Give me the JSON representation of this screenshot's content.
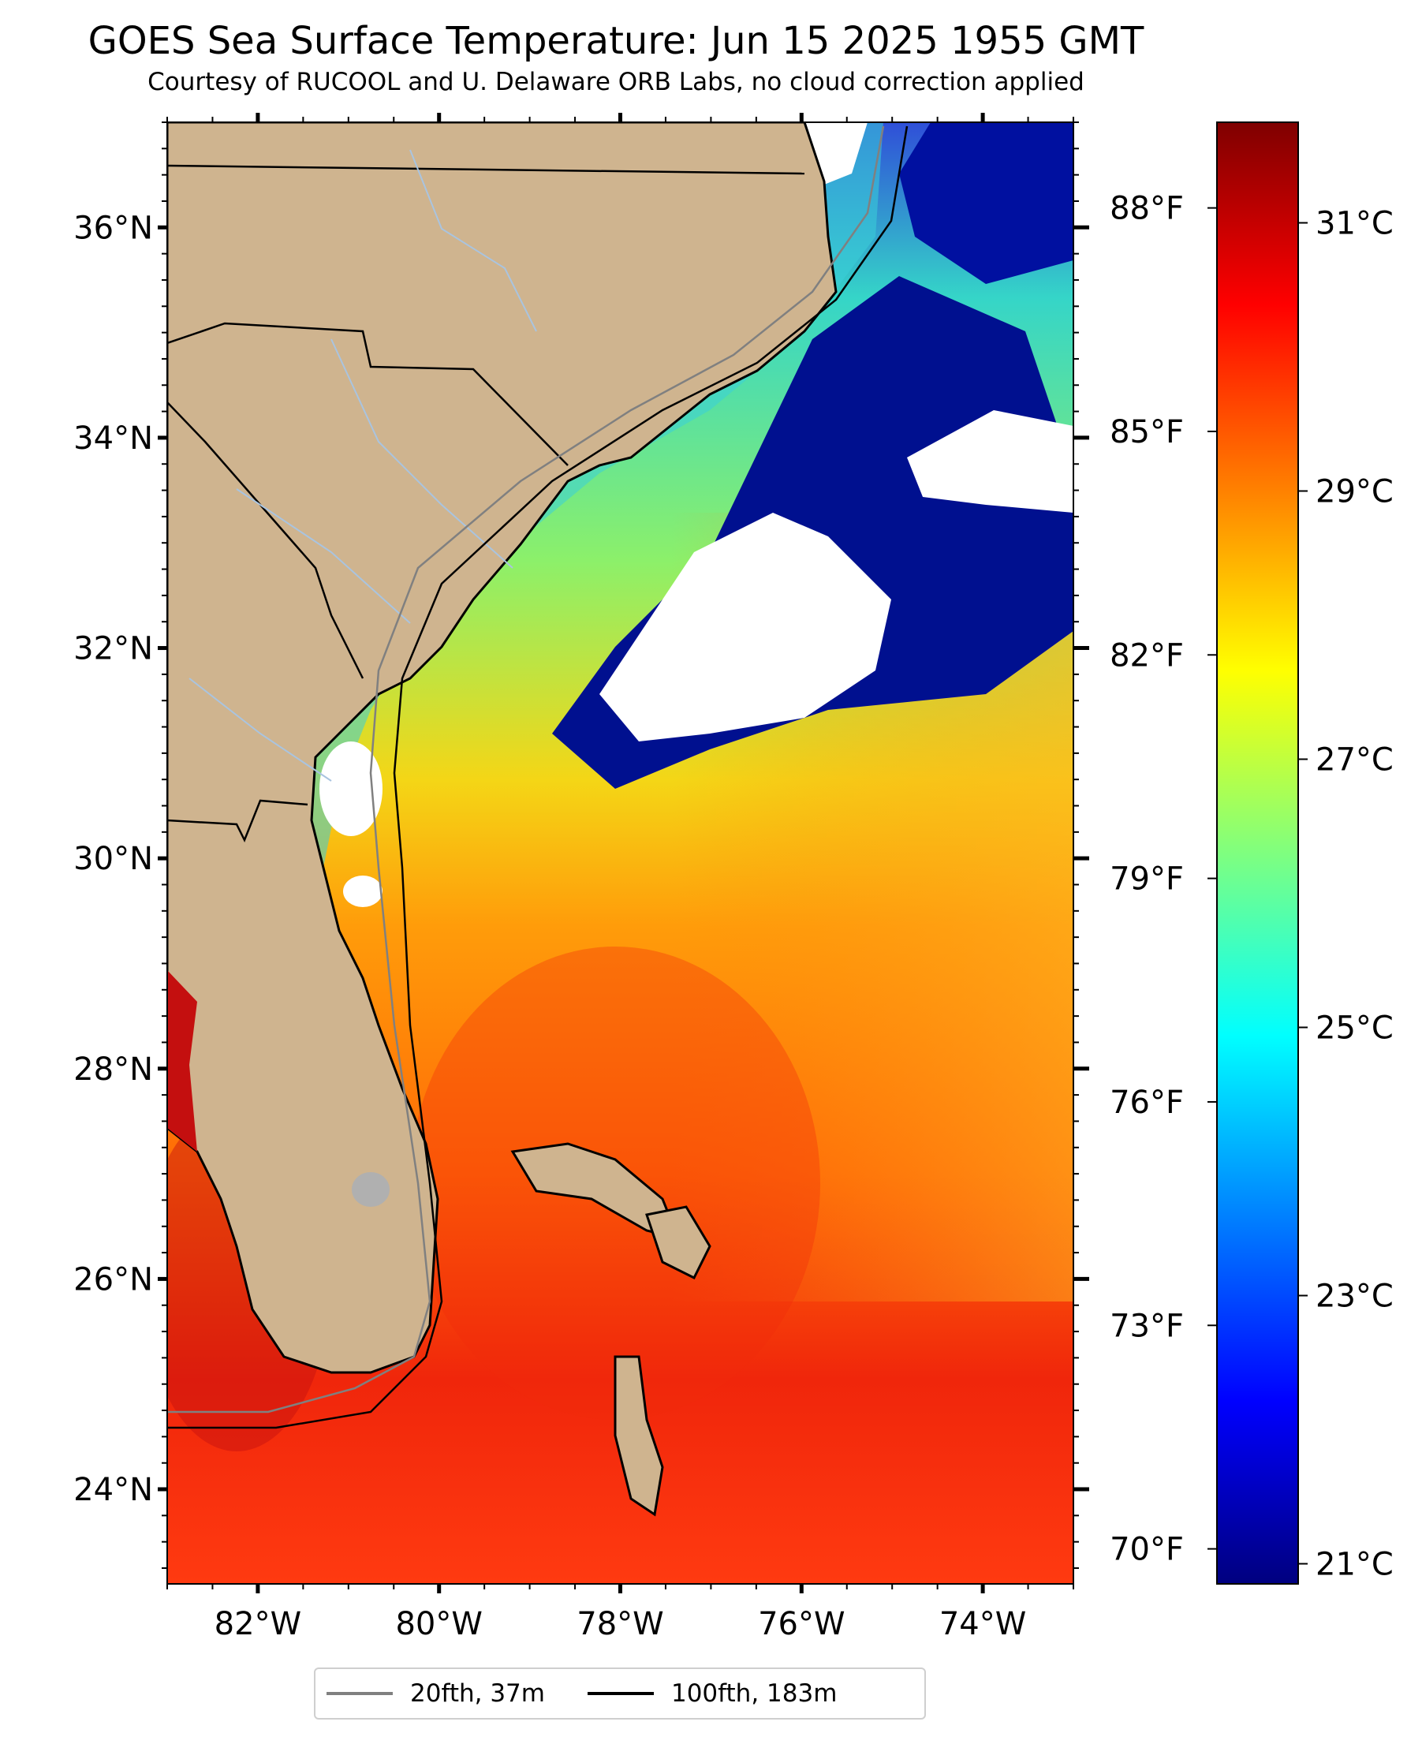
{
  "title": "GOES Sea Surface Temperature: Jun 15 2025 1955 GMT",
  "subtitle": "Courtesy of RUCOOL and U. Delaware ORB Labs, no cloud correction applied",
  "map": {
    "extent": {
      "lon_min": -83.0,
      "lon_max": -73.0,
      "lat_min": 23.1,
      "lat_max": 37.0
    },
    "lon_ticks": [
      {
        "value": -82,
        "label": "82°W"
      },
      {
        "value": -80,
        "label": "80°W"
      },
      {
        "value": -78,
        "label": "78°W"
      },
      {
        "value": -76,
        "label": "76°W"
      },
      {
        "value": -74,
        "label": "74°W"
      }
    ],
    "lat_ticks": [
      {
        "value": 24,
        "label": "24°N"
      },
      {
        "value": 26,
        "label": "26°N"
      },
      {
        "value": 28,
        "label": "28°N"
      },
      {
        "value": 30,
        "label": "30°N"
      },
      {
        "value": 32,
        "label": "32°N"
      },
      {
        "value": 34,
        "label": "34°N"
      },
      {
        "value": 36,
        "label": "36°N"
      }
    ],
    "colors": {
      "land": "#cfb48f",
      "cloud": "#ffffff",
      "lake": "#b0b0b0",
      "river": "#a9c4e0",
      "border": "#000000"
    },
    "regions": {
      "land": "Southeastern United States (NC, SC, GA, FL) and Bahamas",
      "clouds": "white cloud masks offshore",
      "warm_water": "Gulf Stream and Bahamas region around 29–31°C",
      "cool_water": "shelf waters and cloud edges around 21–26°C"
    }
  },
  "colorbar": {
    "colormap": "jet",
    "colors": [
      "#00007f",
      "#0000ff",
      "#007fff",
      "#00ffff",
      "#7fff7f",
      "#ffff00",
      "#ff7f00",
      "#ff0000",
      "#7f0000"
    ],
    "celsius": {
      "min": 20.85,
      "max": 31.75,
      "ticks": [
        {
          "value": 21,
          "label": "21°C"
        },
        {
          "value": 23,
          "label": "23°C"
        },
        {
          "value": 25,
          "label": "25°C"
        },
        {
          "value": 27,
          "label": "27°C"
        },
        {
          "value": 29,
          "label": "29°C"
        },
        {
          "value": 31,
          "label": "31°C"
        }
      ]
    },
    "fahrenheit": {
      "ticks": [
        {
          "value": 70,
          "label": "70°F"
        },
        {
          "value": 73,
          "label": "73°F"
        },
        {
          "value": 76,
          "label": "76°F"
        },
        {
          "value": 79,
          "label": "79°F"
        },
        {
          "value": 82,
          "label": "82°F"
        },
        {
          "value": 85,
          "label": "85°F"
        },
        {
          "value": 88,
          "label": "88°F"
        }
      ]
    }
  },
  "legend": {
    "items": [
      {
        "label": "20fth, 37m",
        "color": "#808080"
      },
      {
        "label": "100fth, 183m",
        "color": "#000000"
      }
    ]
  }
}
